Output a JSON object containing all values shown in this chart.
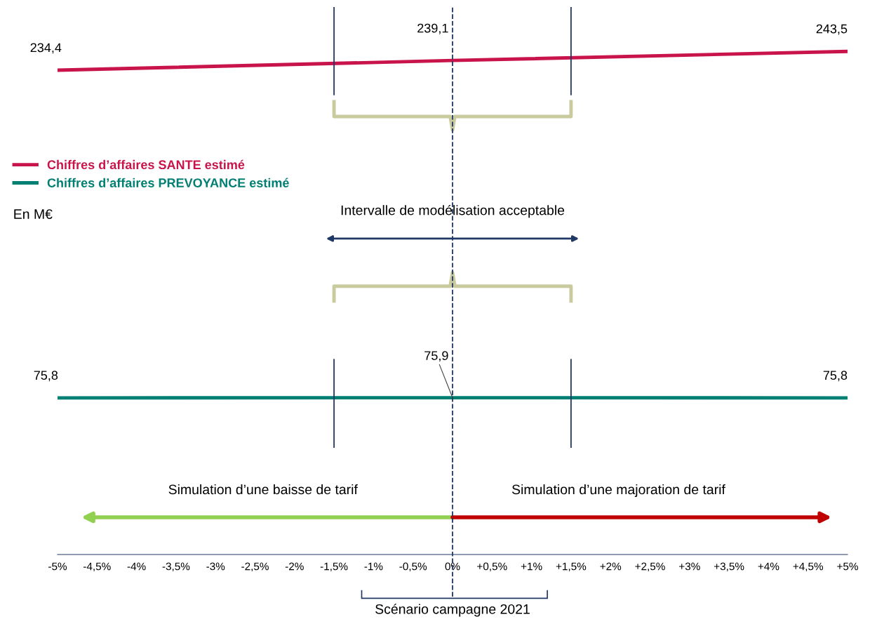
{
  "chart_data": {
    "type": "line",
    "series": [
      {
        "name": "Chiffres d’affaires SANTE estimé",
        "color": "#c8144b",
        "x": [
          -5,
          0,
          5
        ],
        "values": [
          234.4,
          239.1,
          243.5
        ],
        "value_labels": [
          "234,4",
          "239,1",
          "243,5"
        ]
      },
      {
        "name": "Chiffres d’affaires PREVOYANCE estimé",
        "color": "#007f73",
        "x": [
          -5,
          0,
          5
        ],
        "values": [
          75.8,
          75.9,
          75.8
        ],
        "value_labels": [
          "75,8",
          "75,9",
          "75,8"
        ]
      }
    ],
    "xlim": [
      -5,
      5
    ],
    "xticks": [
      {
        "value": -5,
        "label": "-5%"
      },
      {
        "value": -4.5,
        "label": "-4,5%"
      },
      {
        "value": -4,
        "label": "-4%"
      },
      {
        "value": -3.5,
        "label": "-3,5%"
      },
      {
        "value": -3,
        "label": "-3%"
      },
      {
        "value": -2.5,
        "label": "-2,5%"
      },
      {
        "value": -2,
        "label": "-2%"
      },
      {
        "value": -1.5,
        "label": "-1,5%"
      },
      {
        "value": -1,
        "label": "-1%"
      },
      {
        "value": -0.5,
        "label": "-0,5%"
      },
      {
        "value": 0,
        "label": "0%"
      },
      {
        "value": 0.5,
        "label": "+0,5%"
      },
      {
        "value": 1,
        "label": "+1%"
      },
      {
        "value": 1.5,
        "label": "+1,5%"
      },
      {
        "value": 2,
        "label": "+2%"
      },
      {
        "value": 2.5,
        "label": "+2,5%"
      },
      {
        "value": 3,
        "label": "+3%"
      },
      {
        "value": 3.5,
        "label": "+3,5%"
      },
      {
        "value": 4,
        "label": "+4%"
      },
      {
        "value": 4.5,
        "label": "+4,5%"
      },
      {
        "value": 5,
        "label": "+5%"
      }
    ],
    "ylim": [
      0,
      265
    ],
    "tick_labels": "x",
    "grid": false,
    "legend": "left",
    "marker": "none",
    "line_style": "solid",
    "ref_lines": [
      {
        "axis": "x",
        "value": 0,
        "color": "#1f3864",
        "line_style": "dashed"
      },
      {
        "axis": "x",
        "value": -1.5,
        "color": "#1f3864",
        "line_style": "solid"
      },
      {
        "axis": "x",
        "value": 1.5,
        "color": "#1f3864",
        "line_style": "solid"
      }
    ],
    "annotations": [
      "Intervalle de modélisation acceptable",
      "Simulation d’une baisse de tarif",
      "Simulation d’une majoration de tarif",
      "Scénario campagne 2021",
      "En M€"
    ]
  }
}
